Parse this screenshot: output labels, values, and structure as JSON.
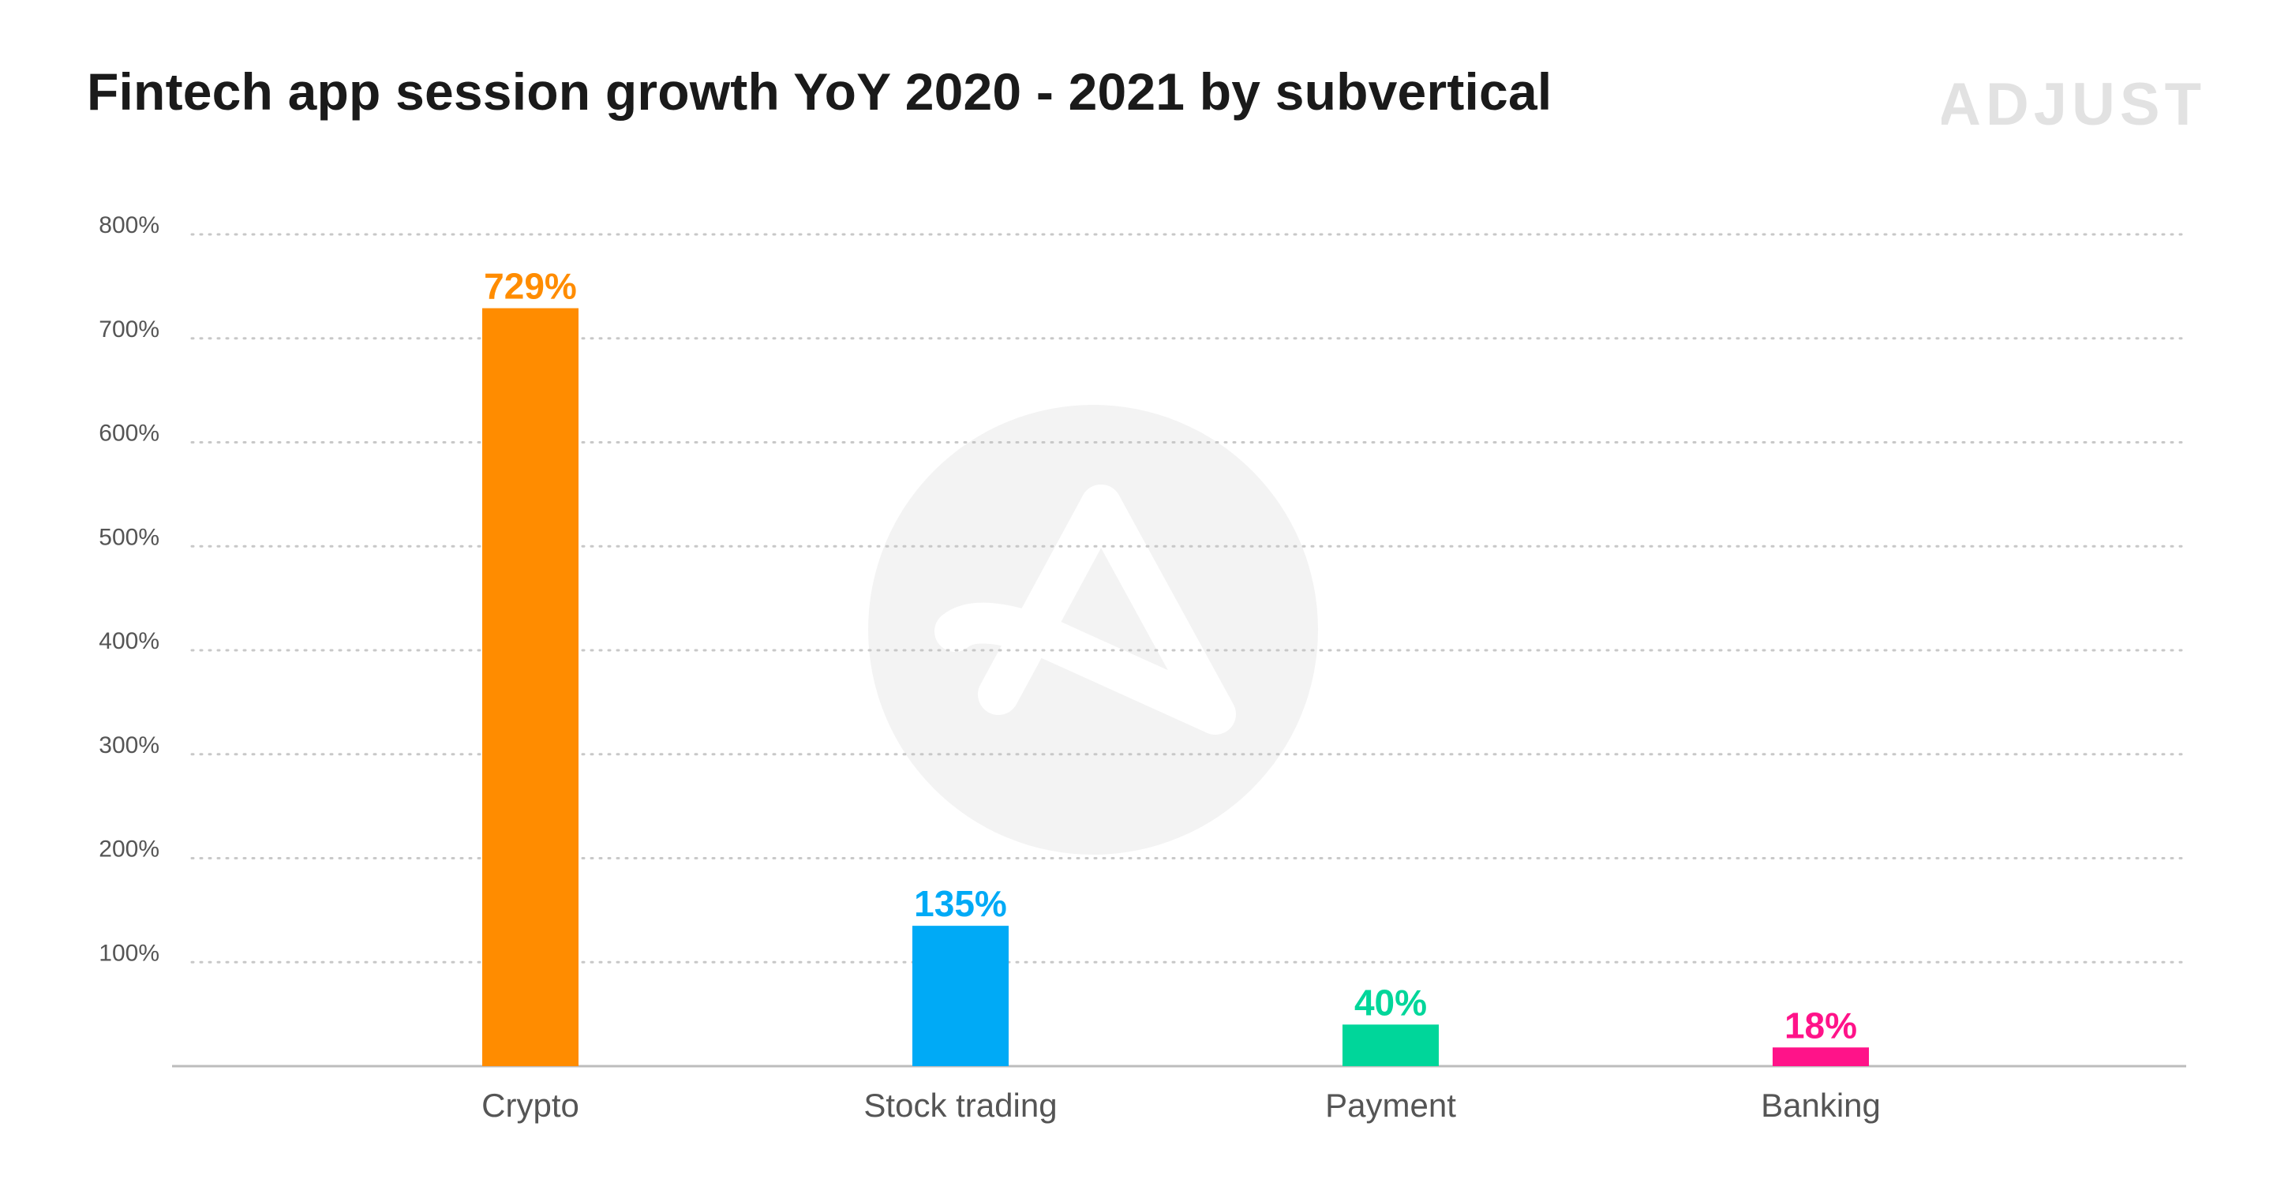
{
  "header": {
    "title": "Fintech app session growth YoY 2020 - 2021 by subvertical",
    "logo_text": "ADJUST"
  },
  "watermark": {
    "icon": "adjust-logo-icon"
  },
  "colors": {
    "crypto": "#FF8C00",
    "stock_trading": "#00AAF6",
    "payment": "#00D69A",
    "banking": "#FF1389",
    "grid": "#c8c8c8",
    "axis_text": "#555555",
    "logo": "#e2e2e2",
    "watermark": "#f3f3f3"
  },
  "chart_data": {
    "type": "bar",
    "title": "Fintech app session growth YoY 2020 - 2021 by subvertical",
    "xlabel": "",
    "ylabel": "",
    "categories": [
      "Crypto",
      "Stock trading",
      "Payment",
      "Banking"
    ],
    "values": [
      729,
      135,
      40,
      18
    ],
    "value_labels": [
      "729%",
      "135%",
      "40%",
      "18%"
    ],
    "bar_colors": [
      "#FF8C00",
      "#00AAF6",
      "#00D69A",
      "#FF1389"
    ],
    "ylim": [
      0,
      800
    ],
    "yticks": [
      100,
      200,
      300,
      400,
      500,
      600,
      700,
      800
    ],
    "ytick_labels": [
      "100%",
      "200%",
      "300%",
      "400%",
      "500%",
      "600%",
      "700%",
      "800%"
    ],
    "grid": true,
    "legend": "none"
  }
}
